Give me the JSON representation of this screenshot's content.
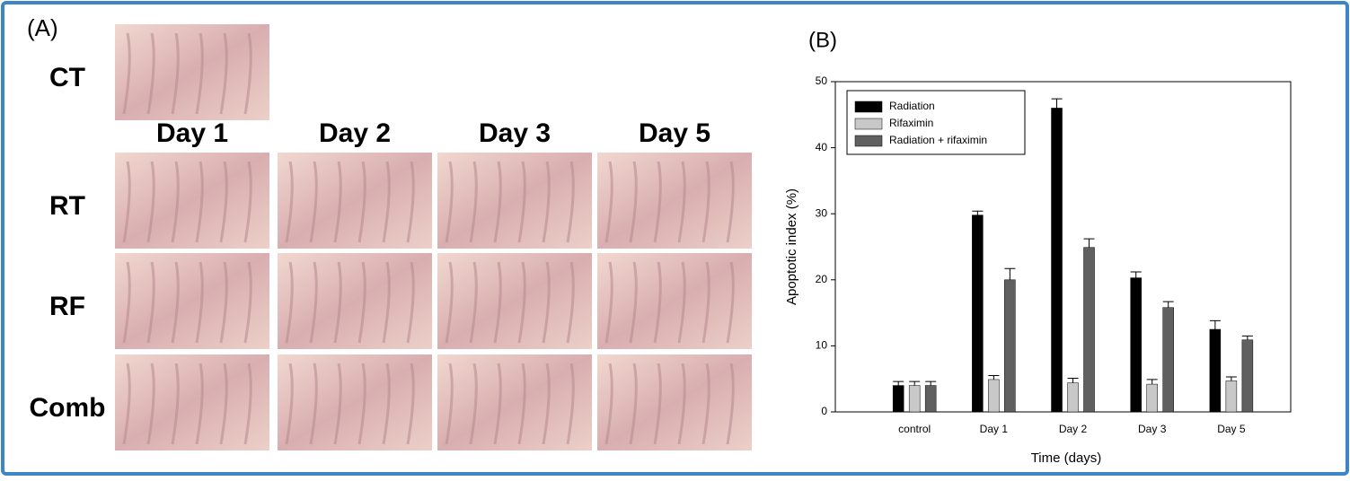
{
  "panel_a": {
    "label": "(A)",
    "rows": [
      "CT",
      "RT",
      "RF",
      "Comb"
    ],
    "columns": [
      "Day 1",
      "Day 2",
      "Day 3",
      "Day 5"
    ]
  },
  "chart_data": {
    "type": "bar",
    "panel_label": "(B)",
    "x_label": "Time (days)",
    "y_label": "Apoptotic index (%)",
    "categories": [
      "control",
      "Day 1",
      "Day 2",
      "Day 3",
      "Day 5"
    ],
    "series": [
      {
        "name": "Radiation",
        "color": "#000000",
        "values": [
          4.0,
          29.8,
          46.0,
          20.3,
          12.5
        ],
        "errors": [
          0.6,
          0.6,
          1.4,
          0.9,
          1.3
        ]
      },
      {
        "name": "Rifaximin",
        "color": "#c8c8c8",
        "values": [
          4.0,
          4.9,
          4.4,
          4.2,
          4.7
        ],
        "errors": [
          0.6,
          0.6,
          0.7,
          0.7,
          0.6
        ]
      },
      {
        "name": "Radiation + rifaximin",
        "color": "#606060",
        "values": [
          4.0,
          20.0,
          24.9,
          15.8,
          10.9
        ],
        "errors": [
          0.6,
          1.7,
          1.3,
          0.9,
          0.6
        ]
      }
    ],
    "ylim": [
      0,
      50
    ],
    "yticks": [
      0,
      10,
      20,
      30,
      40,
      50
    ],
    "legend": "upper left"
  }
}
